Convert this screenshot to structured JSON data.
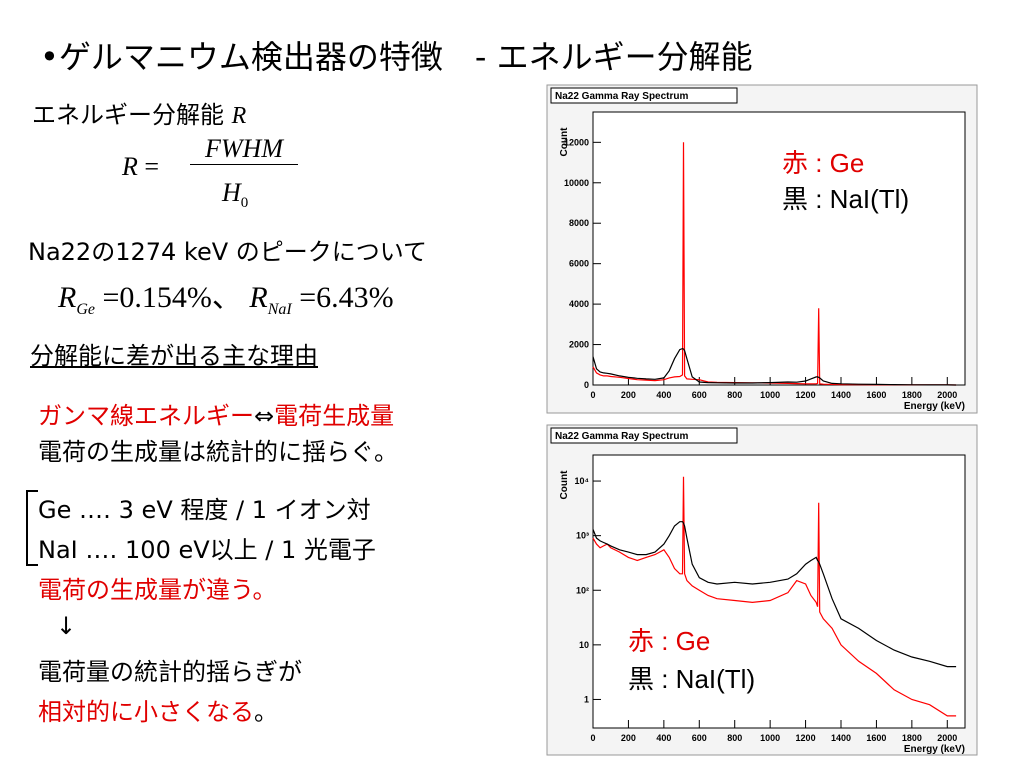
{
  "slide": {
    "title": "•ゲルマニウム検出器の特徴　- エネルギー分解能",
    "resolution_label": "エネルギー分解能",
    "resolution_symbol": "R",
    "formula": {
      "lhs": "R",
      "eq": "=",
      "numerator": "FWHM",
      "denominator": "H",
      "subscript": "0"
    },
    "peak_note": "Na22の1274 keV のピークについて",
    "r_ge": {
      "symbol": "R",
      "sub": "Ge",
      "eq": "=",
      "value": "0.154%",
      "sep": "、"
    },
    "r_nai": {
      "symbol": "R",
      "sub": "NaI",
      "eq": "=",
      "value": "6.43%"
    },
    "reason_heading": "分解能に差が出る主な理由",
    "relation": {
      "left": "ガンマ線エネルギー",
      "arrow": "⇔",
      "right": "電荷生成量"
    },
    "fluctuation": "電荷の生成量は統計的に揺らぐ。",
    "ge_line": "Ge ‥‥ 3 eV 程度 / 1 イオン対",
    "nai_line": "NaI ‥‥ 100 eV以上 / 1 光電子",
    "differs": "電荷の生成量が違う。",
    "down_arrow": "↓",
    "conclusion1": "電荷量の統計的揺らぎが",
    "conclusion2_red": "相対的に小さくなる",
    "conclusion2_end": "。"
  },
  "chart_data": [
    {
      "type": "line",
      "title": "Na22 Gamma Ray Spectrum",
      "y_label": "Count",
      "x_label": "Energy (keV)",
      "log_y": false,
      "annotations": [
        "赤 : Ge",
        "黒 : NaI(Tl)"
      ],
      "x": [
        0,
        20,
        40,
        60,
        80,
        100,
        150,
        200,
        250,
        300,
        350,
        400,
        430,
        460,
        490,
        505,
        511,
        517,
        530,
        560,
        600,
        650,
        700,
        800,
        900,
        1000,
        1100,
        1150,
        1200,
        1230,
        1260,
        1268,
        1274,
        1280,
        1300,
        1350,
        1400,
        1500,
        1600,
        1700,
        1800,
        1900,
        2000,
        2050
      ],
      "series": [
        {
          "name": "Ge",
          "color": "#ff0000",
          "values": [
            900,
            600,
            500,
            450,
            450,
            420,
            380,
            320,
            260,
            240,
            220,
            260,
            350,
            400,
            420,
            500,
            12000,
            450,
            300,
            280,
            260,
            150,
            130,
            120,
            110,
            100,
            80,
            70,
            60,
            60,
            60,
            80,
            3800,
            60,
            40,
            30,
            20,
            15,
            10,
            8,
            5,
            5,
            3,
            2
          ]
        },
        {
          "name": "NaI(Tl)",
          "color": "#000000",
          "values": [
            1400,
            800,
            650,
            600,
            580,
            550,
            450,
            380,
            330,
            300,
            280,
            350,
            700,
            1300,
            1750,
            1800,
            1780,
            1700,
            1300,
            400,
            150,
            120,
            110,
            100,
            100,
            120,
            150,
            140,
            200,
            300,
            400,
            400,
            380,
            350,
            200,
            80,
            60,
            40,
            30,
            20,
            10,
            5,
            3,
            2
          ]
        }
      ],
      "xlim": [
        0,
        2100
      ],
      "xticks": [
        0,
        200,
        400,
        600,
        800,
        1000,
        1200,
        1400,
        1600,
        1800,
        2000
      ],
      "ylim": [
        0,
        13500
      ],
      "yticks": [
        0,
        2000,
        4000,
        6000,
        8000,
        10000,
        12000
      ]
    },
    {
      "type": "line",
      "title": "Na22 Gamma Ray Spectrum",
      "y_label": "Count",
      "x_label": "Energy (keV)",
      "log_y": true,
      "annotations": [
        "赤 : Ge",
        "黒 : NaI(Tl)"
      ],
      "x": [
        0,
        20,
        40,
        60,
        80,
        100,
        150,
        200,
        250,
        300,
        350,
        400,
        430,
        460,
        490,
        505,
        511,
        517,
        530,
        560,
        600,
        650,
        700,
        800,
        900,
        1000,
        1100,
        1150,
        1200,
        1230,
        1260,
        1268,
        1274,
        1280,
        1300,
        1350,
        1400,
        1500,
        1600,
        1700,
        1800,
        1900,
        2000,
        2050
      ],
      "series": [
        {
          "name": "Ge",
          "color": "#ff0000",
          "values": [
            900,
            700,
            600,
            650,
            700,
            600,
            500,
            400,
            350,
            400,
            450,
            550,
            400,
            250,
            200,
            200,
            12000,
            200,
            150,
            120,
            100,
            80,
            70,
            65,
            60,
            65,
            90,
            150,
            130,
            80,
            60,
            50,
            4000,
            40,
            30,
            20,
            10,
            5,
            3,
            1.5,
            1,
            0.8,
            0.5,
            0.5
          ]
        },
        {
          "name": "NaI(Tl)",
          "color": "#000000",
          "values": [
            1300,
            900,
            800,
            750,
            700,
            650,
            550,
            500,
            450,
            450,
            500,
            700,
            1000,
            1500,
            1800,
            1800,
            1700,
            1500,
            900,
            300,
            170,
            140,
            130,
            140,
            130,
            140,
            160,
            200,
            300,
            350,
            400,
            350,
            330,
            300,
            200,
            70,
            30,
            20,
            12,
            8,
            6,
            5,
            4,
            4
          ]
        }
      ],
      "xlim": [
        0,
        2100
      ],
      "xticks": [
        0,
        200,
        400,
        600,
        800,
        1000,
        1200,
        1400,
        1600,
        1800,
        2000
      ],
      "ylim": [
        0.3,
        30000
      ],
      "yticks": [
        1,
        10,
        {
          "value": 100,
          "label": "10²"
        },
        {
          "value": 1000,
          "label": "10³"
        },
        {
          "value": 10000,
          "label": "10⁴"
        }
      ]
    }
  ]
}
